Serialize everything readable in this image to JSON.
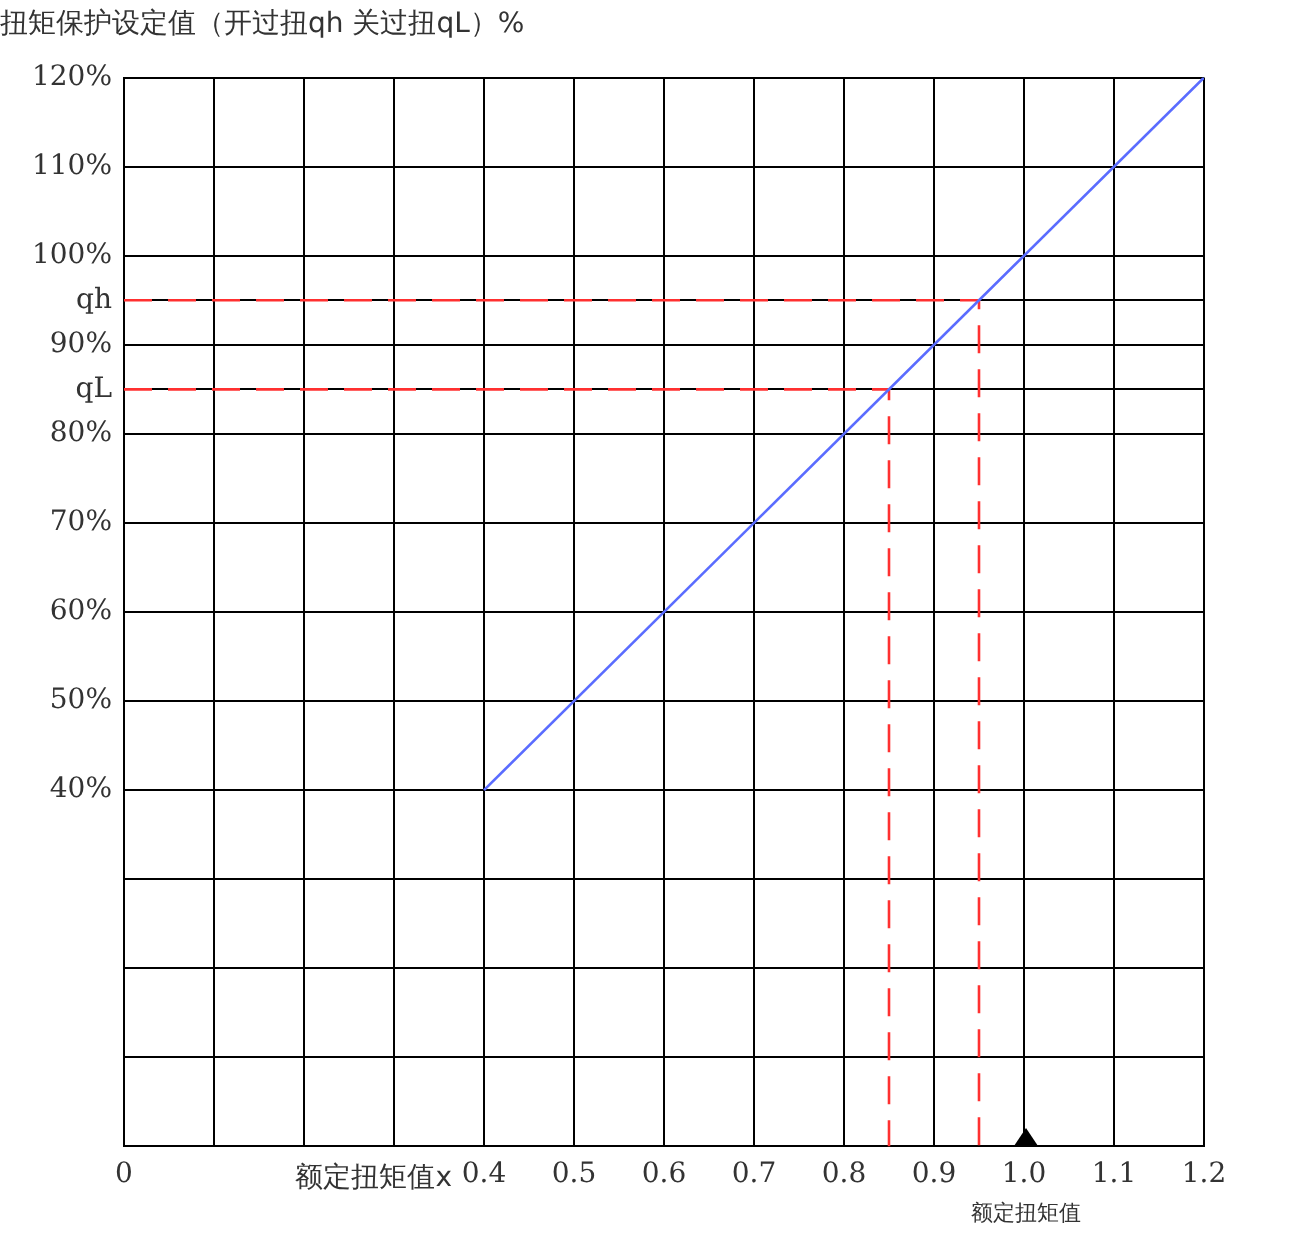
{
  "chart_data": {
    "type": "line",
    "title": "扭矩保护设定值（开过扭qh 关过扭qL）%",
    "xlabel": "额定扭矩值x",
    "annotations": [
      "额定扭矩值"
    ],
    "series": [
      {
        "color": "#5a6cff",
        "x": [
          0.4,
          1.2
        ],
        "values": [
          40,
          120
        ]
      },
      {
        "color": "#ff3030",
        "line_style": "dashed",
        "x": [
          0,
          0.95,
          0.95
        ],
        "values": [
          95,
          95,
          0
        ]
      },
      {
        "color": "#ff3030",
        "line_style": "dashed",
        "x": [
          0,
          0.85,
          0.85
        ],
        "values": [
          85,
          85,
          0
        ]
      }
    ],
    "xlim": [
      0,
      1.2
    ],
    "xticks": [
      {
        "value": 0,
        "label": "0"
      },
      {
        "value": 0.1,
        "label": null
      },
      {
        "value": 0.2,
        "label": null
      },
      {
        "value": 0.3,
        "label": null
      },
      0.4,
      0.5,
      0.6,
      0.7,
      0.8,
      0.9,
      {
        "value": 1,
        "label": "1.0"
      },
      1.1,
      1.2
    ],
    "ylim": [
      0,
      120
    ],
    "yticks": [
      {
        "value": 0,
        "label": null
      },
      {
        "value": 10,
        "label": null
      },
      {
        "value": 20,
        "label": null
      },
      {
        "value": 30,
        "label": null
      },
      {
        "value": 40,
        "label": "40%"
      },
      {
        "value": 50,
        "label": "50%"
      },
      {
        "value": 60,
        "label": "60%"
      },
      {
        "value": 70,
        "label": "70%"
      },
      {
        "value": 80,
        "label": "80%"
      },
      {
        "value": 85,
        "label": "qL"
      },
      {
        "value": 90,
        "label": "90%"
      },
      {
        "value": 95,
        "label": "qh"
      },
      {
        "value": 100,
        "label": "100%"
      },
      {
        "value": 110,
        "label": "110%"
      },
      {
        "value": 120,
        "label": "120%"
      }
    ],
    "grid": true,
    "legend": false,
    "marker": "none"
  }
}
